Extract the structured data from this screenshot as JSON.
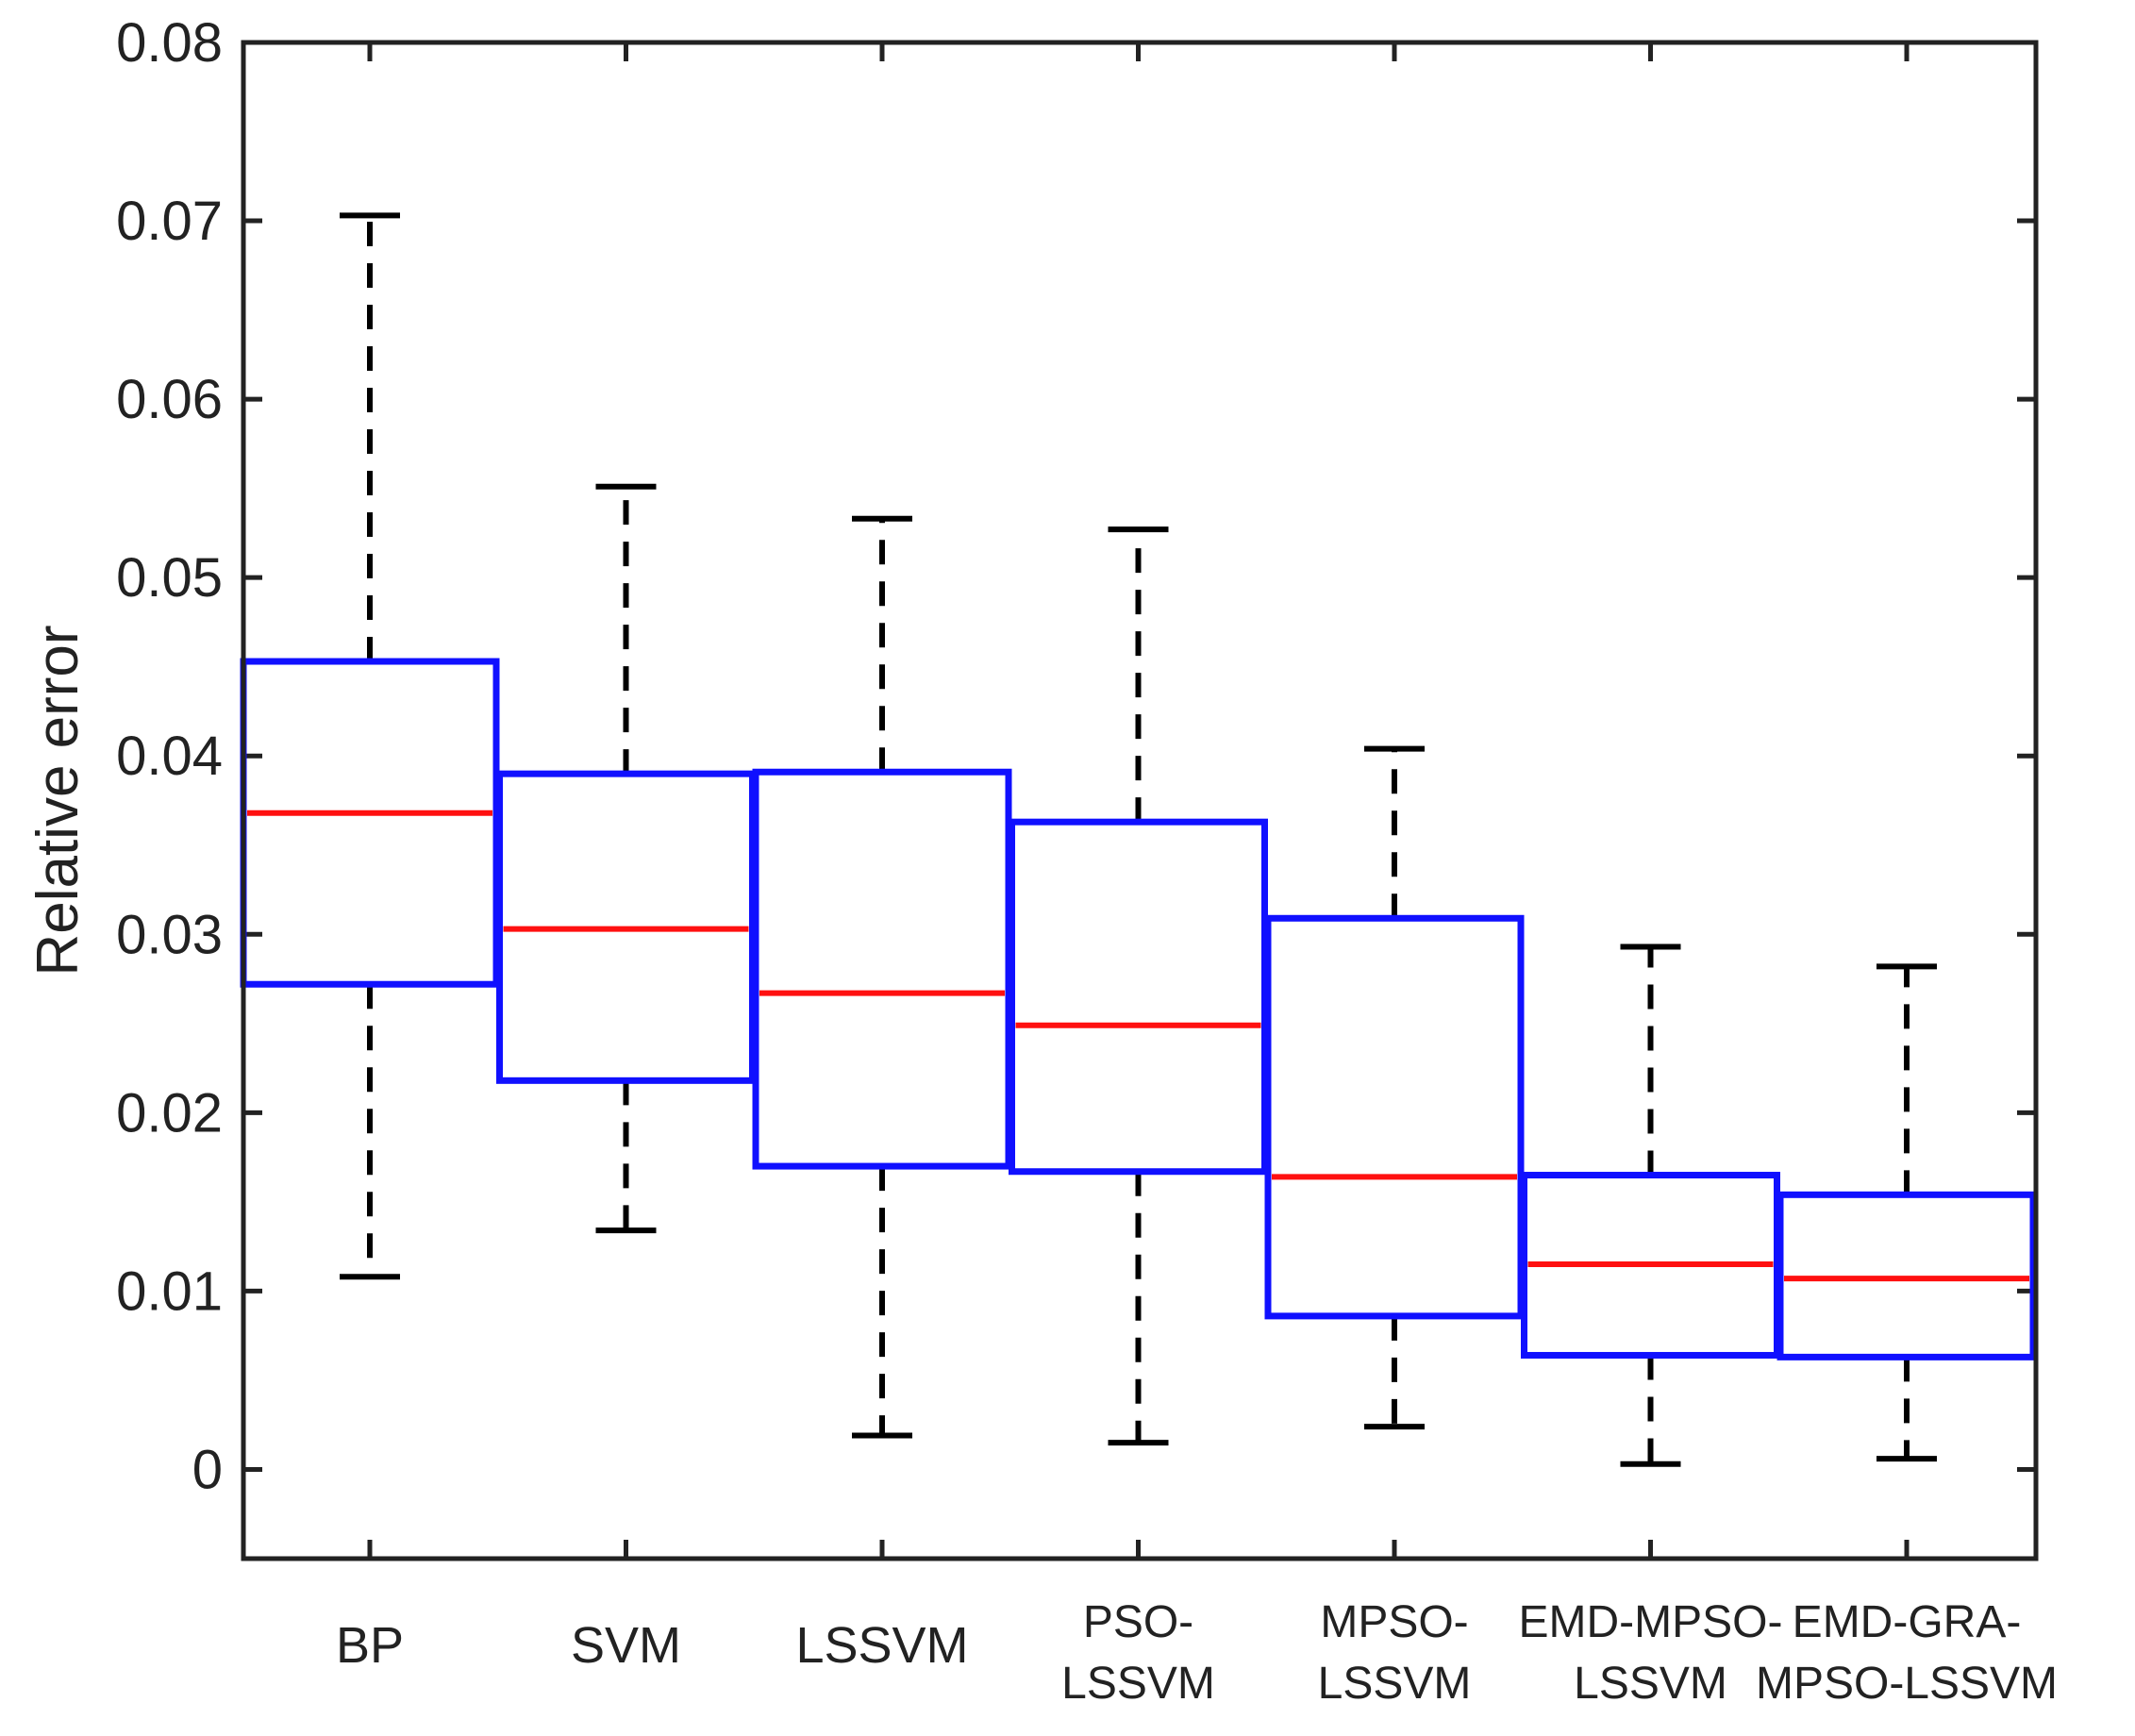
{
  "chart_data": {
    "type": "box",
    "ylabel": "Relative error",
    "xlabel": "",
    "ylim": [
      -0.005,
      0.08
    ],
    "yticks": [
      0,
      0.01,
      0.02,
      0.03,
      0.04,
      0.05,
      0.06,
      0.07,
      0.08
    ],
    "ytick_labels": [
      "0",
      "0.01",
      "0.02",
      "0.03",
      "0.04",
      "0.05",
      "0.06",
      "0.07",
      "0.08"
    ],
    "grid": false,
    "colors": {
      "box": "#1010ff",
      "median": "#ff1010",
      "whisker": "#000000",
      "axis": "#222222"
    },
    "categories": [
      {
        "lines": [
          "BP"
        ],
        "min": 0.0108,
        "q1": 0.0272,
        "median": 0.0368,
        "q3": 0.0453,
        "max": 0.0703
      },
      {
        "lines": [
          "SVM"
        ],
        "min": 0.0134,
        "q1": 0.0218,
        "median": 0.0303,
        "q3": 0.039,
        "max": 0.0551
      },
      {
        "lines": [
          "LSSVM"
        ],
        "min": 0.0019,
        "q1": 0.017,
        "median": 0.0267,
        "q3": 0.0391,
        "max": 0.0533
      },
      {
        "lines": [
          "PSO-",
          "LSSVM"
        ],
        "min": 0.0015,
        "q1": 0.0167,
        "median": 0.0249,
        "q3": 0.0363,
        "max": 0.0527
      },
      {
        "lines": [
          "MPSO-",
          "LSSVM"
        ],
        "min": 0.0024,
        "q1": 0.0086,
        "median": 0.0164,
        "q3": 0.0309,
        "max": 0.0404
      },
      {
        "lines": [
          "EMD-MPSO-",
          "LSSVM"
        ],
        "min": 0.0003,
        "q1": 0.0064,
        "median": 0.0115,
        "q3": 0.0165,
        "max": 0.0293
      },
      {
        "lines": [
          "EMD-GRA-",
          "MPSO-LSSVM"
        ],
        "min": 0.0006,
        "q1": 0.0063,
        "median": 0.0107,
        "q3": 0.0154,
        "max": 0.0282
      }
    ]
  }
}
